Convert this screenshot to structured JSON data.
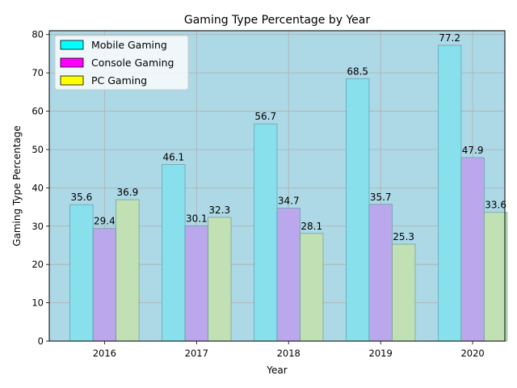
{
  "chart_data": {
    "type": "bar",
    "title": "Gaming Type Percentage by Year",
    "xlabel": "Year",
    "ylabel": "Gaming Type Percentage",
    "categories": [
      "2016",
      "2017",
      "2018",
      "2019",
      "2020"
    ],
    "ylim": [
      0,
      81
    ],
    "yticks": [
      0,
      10,
      20,
      30,
      40,
      50,
      60,
      70,
      80
    ],
    "grid": true,
    "legend_position": "upper-left",
    "plot_background": "#add8e6",
    "series": [
      {
        "name": "Mobile Gaming",
        "values": [
          35.6,
          46.1,
          56.7,
          68.5,
          77.2
        ],
        "bar_color": "#87e0ec",
        "legend_color": "#00ffff"
      },
      {
        "name": "Console Gaming",
        "values": [
          29.4,
          30.1,
          34.7,
          35.7,
          47.9
        ],
        "bar_color": "#bba8ec",
        "legend_color": "#ff00ff"
      },
      {
        "name": "PC Gaming",
        "values": [
          36.9,
          32.3,
          28.1,
          25.3,
          33.6
        ],
        "bar_color": "#c1e0b4",
        "legend_color": "#ffff00"
      }
    ]
  }
}
